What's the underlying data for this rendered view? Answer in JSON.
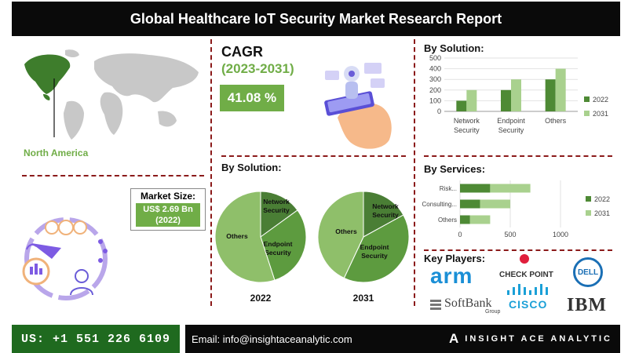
{
  "title": "Global Healthcare IoT Security Market  Research Report",
  "region": "North America",
  "cagr": {
    "label": "CAGR",
    "period": "(2023-2031)",
    "value": "41.08 %"
  },
  "market_size": {
    "label": "Market Size:",
    "value": "US$ 2.69 Bn",
    "year": "(2022)"
  },
  "colors": {
    "dark_green": "#4e8a35",
    "light_green": "#a9d18e",
    "mid_green": "#70ad47",
    "divider": "#8b1a1a"
  },
  "chart_data": [
    {
      "type": "bar",
      "title": "By Solution:",
      "categories": [
        "Network Security",
        "Endpoint Security",
        "Others"
      ],
      "category_lines": [
        [
          "Network",
          "Security"
        ],
        [
          "Endpoint",
          "Security"
        ],
        [
          "Others"
        ]
      ],
      "series": [
        {
          "name": "2022",
          "values": [
            100,
            200,
            300
          ]
        },
        {
          "name": "2031",
          "values": [
            200,
            300,
            400
          ]
        }
      ],
      "yticks": [
        "0",
        "100",
        "200",
        "300",
        "400",
        "500"
      ],
      "ylim": [
        0,
        500
      ],
      "legend": "right"
    },
    {
      "type": "pie",
      "title": "By Solution:",
      "charts": [
        {
          "name": "2022",
          "slices": [
            {
              "label": "Network Security",
              "value": 15
            },
            {
              "label": "Endpoint Security",
              "value": 30
            },
            {
              "label": "Others",
              "value": 55
            }
          ]
        },
        {
          "name": "2031",
          "slices": [
            {
              "label": "Network Security",
              "value": 17
            },
            {
              "label": "Endpoint Security",
              "value": 40
            },
            {
              "label": "Others",
              "value": 43
            }
          ]
        }
      ]
    },
    {
      "type": "bar",
      "orientation": "horizontal",
      "stacked": true,
      "title": "By Services:",
      "categories": [
        "Risk...",
        "Consulting...",
        "Others"
      ],
      "series": [
        {
          "name": "2022",
          "values": [
            300,
            200,
            100
          ]
        },
        {
          "name": "2031",
          "values": [
            400,
            300,
            200
          ]
        }
      ],
      "xticks": [
        "0",
        "500",
        "1000"
      ],
      "xlim": [
        0,
        1000
      ],
      "legend": "right"
    }
  ],
  "key_players": {
    "label": "Key Players:",
    "logos": [
      "arm",
      "CHECK POINT",
      "DELL",
      "SoftBank",
      "Group",
      "CISCO",
      "IBM"
    ]
  },
  "footer": {
    "phone": "US: +1 551 226 6109",
    "email": "Email: info@insightaceanalytic.com",
    "brand": "INSIGHT ACE ANALYTIC",
    "brand_mark": "A"
  }
}
